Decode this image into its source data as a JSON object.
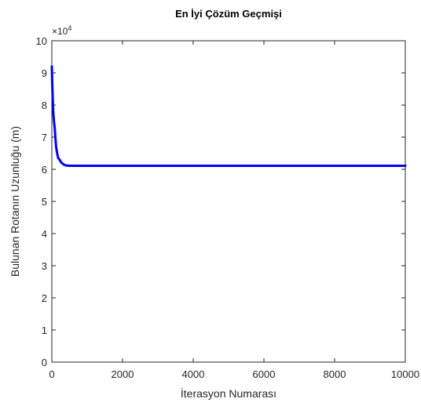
{
  "chart_data": {
    "type": "line",
    "title": "En İyi Çözüm Geçmişi",
    "xlabel": "İterasyon Numarası",
    "ylabel": "Bulunan Rotanın Uzunluğu (m)",
    "y_multiplier_base": "×10",
    "y_multiplier_exponent": "4",
    "xlim": [
      0,
      10000
    ],
    "ylim": [
      0,
      10
    ],
    "x_ticks": [
      0,
      2000,
      4000,
      6000,
      8000,
      10000
    ],
    "y_ticks": [
      0,
      1,
      2,
      3,
      4,
      5,
      6,
      7,
      8,
      9,
      10
    ],
    "x_tick_labels": [
      "0",
      "2000",
      "4000",
      "6000",
      "8000",
      "10000"
    ],
    "y_tick_labels": [
      "0",
      "1",
      "2",
      "3",
      "4",
      "5",
      "6",
      "7",
      "8",
      "9",
      "10"
    ],
    "grid": false,
    "line_color": "#0000FF",
    "series": [
      {
        "x": [
          0,
          10,
          25,
          40,
          60,
          80,
          100,
          120,
          150,
          180,
          220,
          260,
          300,
          350,
          400,
          500,
          700,
          1000,
          2000,
          4000,
          6000,
          8000,
          10000
        ],
        "values": [
          9.2,
          8.7,
          8.2,
          7.8,
          7.5,
          7.3,
          7.0,
          6.7,
          6.5,
          6.35,
          6.3,
          6.22,
          6.18,
          6.14,
          6.12,
          6.11,
          6.11,
          6.11,
          6.11,
          6.11,
          6.11,
          6.11,
          6.11
        ]
      }
    ]
  }
}
